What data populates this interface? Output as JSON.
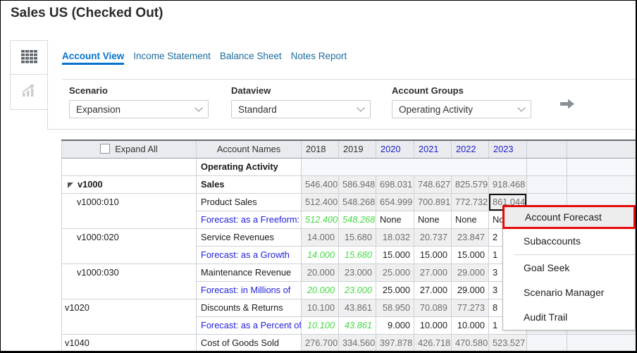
{
  "title": "Sales US (Checked Out)",
  "sidebar": {
    "view_buttons": [
      {
        "name": "grid-view",
        "icon": "grid-icon",
        "active": true
      },
      {
        "name": "chart-view",
        "icon": "chart-icon",
        "active": false
      }
    ]
  },
  "tabs": [
    {
      "label": "Account View",
      "active": true
    },
    {
      "label": "Income Statement",
      "active": false
    },
    {
      "label": "Balance Sheet",
      "active": false
    },
    {
      "label": "Notes Report",
      "active": false
    }
  ],
  "filters": [
    {
      "label": "Scenario",
      "value": "Expansion"
    },
    {
      "label": "Dataview",
      "value": "Standard"
    },
    {
      "label": "Account Groups",
      "value": "Operating Activity"
    }
  ],
  "table": {
    "expand_all": "Expand All",
    "account_names": "Account Names",
    "years": [
      {
        "label": "2018",
        "link": false
      },
      {
        "label": "2019",
        "link": false
      },
      {
        "label": "2020",
        "link": true
      },
      {
        "label": "2021",
        "link": true
      },
      {
        "label": "2022",
        "link": true
      },
      {
        "label": "2023",
        "link": true
      }
    ],
    "rows": [
      {
        "id": "",
        "idSpan": 1,
        "indent": "root",
        "boldId": false,
        "name": "Operating Activity",
        "nameStyle": "section",
        "cells": [
          {
            "t": "",
            "s": "sec",
            "span": 6
          },
          {
            "t": "",
            "s": "sec"
          },
          {
            "t": "",
            "s": "sec"
          }
        ]
      },
      {
        "id": "v1000",
        "idSpan": 1,
        "indent": "parent",
        "boldId": true,
        "twisty": true,
        "name": "Sales",
        "nameStyle": "bold",
        "cells": [
          {
            "t": "546.400",
            "s": "num"
          },
          {
            "t": "586.948",
            "s": "num"
          },
          {
            "t": "698.031",
            "s": "num"
          },
          {
            "t": "748.627",
            "s": "num"
          },
          {
            "t": "825.579",
            "s": "num"
          },
          {
            "t": "918.468",
            "s": "num"
          },
          {
            "t": "",
            "s": "trail"
          },
          {
            "t": "",
            "s": "trail"
          }
        ]
      },
      {
        "id": "v1000:010",
        "idSpan": 2,
        "indent": "child",
        "boldId": false,
        "name": "Product Sales",
        "nameStyle": "plain",
        "cells": [
          {
            "t": "512.400",
            "s": "num"
          },
          {
            "t": "548.268",
            "s": "num"
          },
          {
            "t": "654.999",
            "s": "num"
          },
          {
            "t": "700.891",
            "s": "num"
          },
          {
            "t": "772.732",
            "s": "num"
          },
          {
            "t": "861.044",
            "s": "num sel",
            "selected": true
          },
          {
            "t": "",
            "s": "trail"
          },
          {
            "t": "",
            "s": "trail"
          }
        ]
      },
      {
        "id": null,
        "name": "Forecast: as a Freeform:",
        "nameStyle": "link",
        "cells": [
          {
            "t": "512.400",
            "s": "hist"
          },
          {
            "t": "548.268",
            "s": "hist"
          },
          {
            "t": "None",
            "s": "none"
          },
          {
            "t": "None",
            "s": "none"
          },
          {
            "t": "None",
            "s": "none"
          },
          {
            "t": "None",
            "s": "none",
            "obscured": true
          },
          {
            "t": "",
            "s": "trail"
          },
          {
            "t": "",
            "s": "trail"
          }
        ]
      },
      {
        "id": "v1000:020",
        "idSpan": 2,
        "indent": "child",
        "boldId": false,
        "name": "Service Revenues",
        "nameStyle": "plain",
        "cells": [
          {
            "t": "14.000",
            "s": "num"
          },
          {
            "t": "15.680",
            "s": "num"
          },
          {
            "t": "18.032",
            "s": "num"
          },
          {
            "t": "20.737",
            "s": "num"
          },
          {
            "t": "23.847",
            "s": "num"
          },
          {
            "t": "2",
            "s": "part",
            "obscured": true
          },
          {
            "t": "",
            "s": "trail"
          },
          {
            "t": "",
            "s": "trail"
          }
        ]
      },
      {
        "id": null,
        "name": "Forecast: as a Growth",
        "nameStyle": "link",
        "cells": [
          {
            "t": "14.000",
            "s": "hist"
          },
          {
            "t": "15.680",
            "s": "hist"
          },
          {
            "t": "15.000",
            "s": "fcst"
          },
          {
            "t": "15.000",
            "s": "fcst"
          },
          {
            "t": "15.000",
            "s": "fcst"
          },
          {
            "t": "1",
            "s": "part",
            "obscured": true
          },
          {
            "t": "",
            "s": "trail"
          },
          {
            "t": "",
            "s": "trail"
          }
        ]
      },
      {
        "id": "v1000:030",
        "idSpan": 2,
        "indent": "child",
        "boldId": false,
        "name": "Maintenance Revenue",
        "nameStyle": "plain",
        "cells": [
          {
            "t": "20.000",
            "s": "num"
          },
          {
            "t": "23.000",
            "s": "num"
          },
          {
            "t": "25.000",
            "s": "num"
          },
          {
            "t": "27.000",
            "s": "num"
          },
          {
            "t": "29.000",
            "s": "num"
          },
          {
            "t": "3",
            "s": "part",
            "obscured": true
          },
          {
            "t": "",
            "s": "trail"
          },
          {
            "t": "",
            "s": "trail"
          }
        ]
      },
      {
        "id": null,
        "name": "Forecast: in Millions of",
        "nameStyle": "link",
        "cells": [
          {
            "t": "20.000",
            "s": "hist"
          },
          {
            "t": "23.000",
            "s": "hist"
          },
          {
            "t": "25.000",
            "s": "fcst"
          },
          {
            "t": "27.000",
            "s": "fcst"
          },
          {
            "t": "29.000",
            "s": "fcst"
          },
          {
            "t": "3",
            "s": "part",
            "obscured": true
          },
          {
            "t": "",
            "s": "trail"
          },
          {
            "t": "",
            "s": "trail"
          }
        ]
      },
      {
        "id": "v1020",
        "idSpan": 2,
        "indent": "root",
        "boldId": false,
        "name": "Discounts & Returns",
        "nameStyle": "plain",
        "cells": [
          {
            "t": "10.100",
            "s": "num"
          },
          {
            "t": "43.861",
            "s": "num"
          },
          {
            "t": "58.950",
            "s": "num"
          },
          {
            "t": "70.089",
            "s": "num"
          },
          {
            "t": "77.273",
            "s": "num"
          },
          {
            "t": "8",
            "s": "part",
            "obscured": true
          },
          {
            "t": "",
            "s": "trail"
          },
          {
            "t": "",
            "s": "trail"
          }
        ]
      },
      {
        "id": null,
        "name": "Forecast: as a Percent of",
        "nameStyle": "link",
        "cells": [
          {
            "t": "10.100",
            "s": "hist"
          },
          {
            "t": "43.861",
            "s": "hist"
          },
          {
            "t": "9.000",
            "s": "fcst"
          },
          {
            "t": "10.000",
            "s": "fcst"
          },
          {
            "t": "10.000",
            "s": "fcst"
          },
          {
            "t": "1",
            "s": "part",
            "obscured": true
          },
          {
            "t": "",
            "s": "trail"
          },
          {
            "t": "",
            "s": "trail"
          }
        ]
      },
      {
        "id": "v1040",
        "idSpan": 1,
        "indent": "root",
        "boldId": false,
        "name": "Cost of Goods Sold",
        "nameStyle": "plain",
        "cells": [
          {
            "t": "276.700",
            "s": "num"
          },
          {
            "t": "334.560",
            "s": "num"
          },
          {
            "t": "397.878",
            "s": "num"
          },
          {
            "t": "426.718",
            "s": "num"
          },
          {
            "t": "470.580",
            "s": "num"
          },
          {
            "t": "523.527",
            "s": "num"
          },
          {
            "t": "",
            "s": "trail"
          },
          {
            "t": "",
            "s": "trail"
          }
        ]
      }
    ]
  },
  "context_menu": {
    "items": [
      "Account Forecast",
      "Subaccounts",
      "Goal Seek",
      "Scenario Manager",
      "Audit Trail"
    ],
    "highlighted_index": 0,
    "separator_after_index": 1
  },
  "colors": {
    "tab_active_blue": "#0572ce",
    "link_blue": "#2222dd",
    "year_link_blue": "#2323cd",
    "history_green": "#46d946",
    "menu_highlight_red": "#e60b0b",
    "selected_cell_border": "#111111"
  }
}
